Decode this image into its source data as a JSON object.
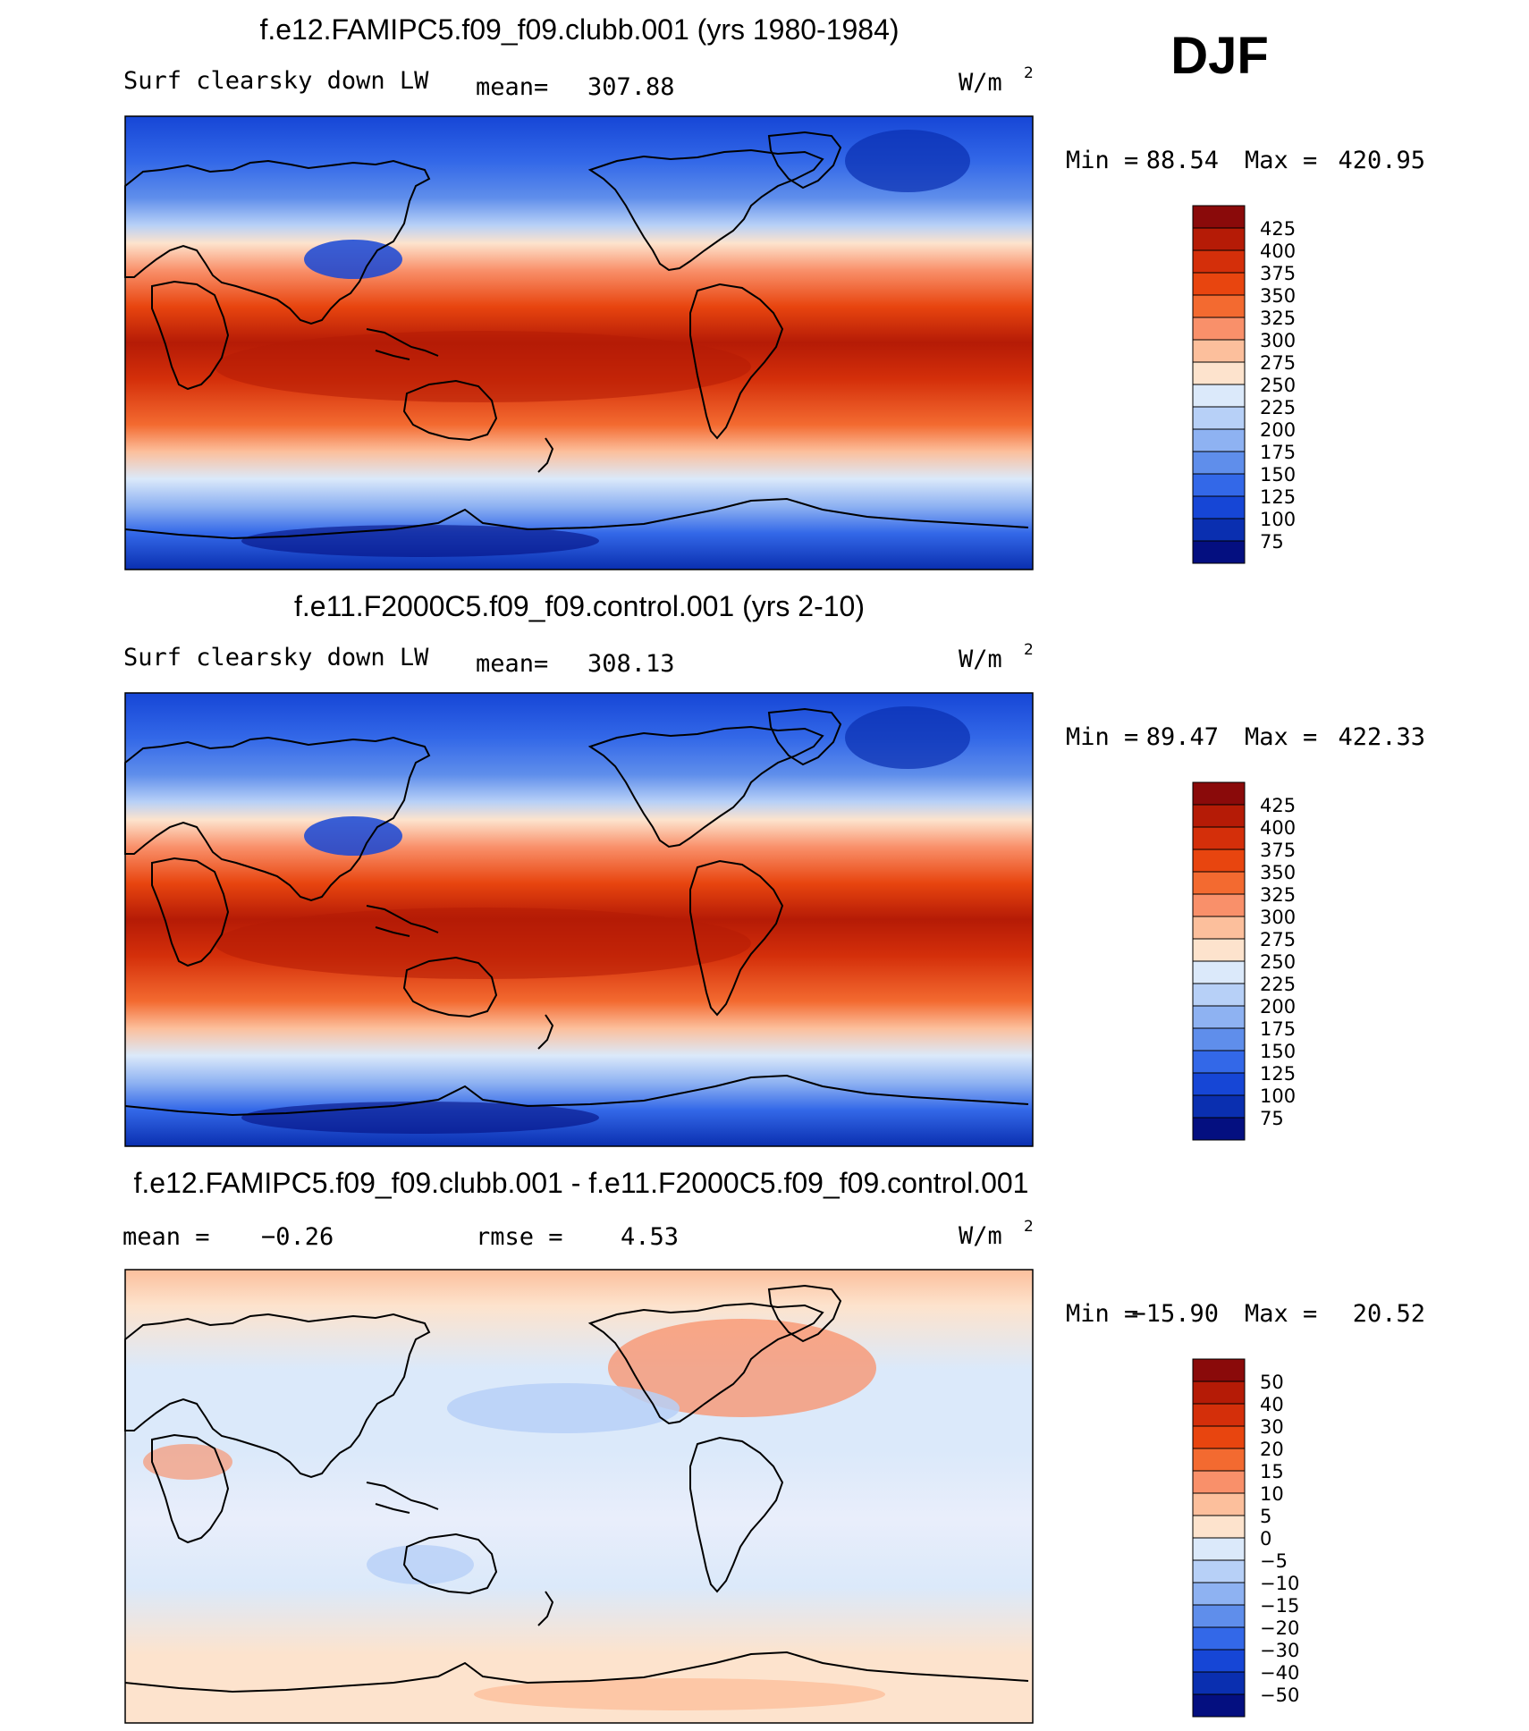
{
  "season": "DJF",
  "chart_data": [
    {
      "type": "heatmap",
      "title": "f.e12.FAMIPC5.f09_f09.clubb.001 (yrs 1980-1984)",
      "variable": "Surf clearsky down LW",
      "mean_label": "mean=",
      "mean_value": "307.88",
      "units": "W/m",
      "units_sup": "2",
      "min_label": "Min =",
      "min_value": "88.54",
      "max_label": "Max =",
      "max_value": "420.95",
      "colorbar_levels": [
        "425",
        "400",
        "375",
        "350",
        "325",
        "300",
        "275",
        "250",
        "225",
        "200",
        "175",
        "150",
        "125",
        "100",
        "75"
      ],
      "colorbar_colors": [
        "#8a0a0a",
        "#b51b06",
        "#d42f0a",
        "#e8450f",
        "#f36a30",
        "#f9906a",
        "#fcbf9c",
        "#fde3cd",
        "#dbe9fa",
        "#b7d0f7",
        "#8eb2f2",
        "#5f8eeb",
        "#3368e8",
        "#1646d6",
        "#0a2fb0",
        "#040f80"
      ]
    },
    {
      "type": "heatmap",
      "title": "f.e11.F2000C5.f09_f09.control.001 (yrs 2-10)",
      "variable": "Surf clearsky down LW",
      "mean_label": "mean=",
      "mean_value": "308.13",
      "units": "W/m",
      "units_sup": "2",
      "min_label": "Min =",
      "min_value": "89.47",
      "max_label": "Max =",
      "max_value": "422.33",
      "colorbar_levels": [
        "425",
        "400",
        "375",
        "350",
        "325",
        "300",
        "275",
        "250",
        "225",
        "200",
        "175",
        "150",
        "125",
        "100",
        "75"
      ],
      "colorbar_colors": [
        "#8a0a0a",
        "#b51b06",
        "#d42f0a",
        "#e8450f",
        "#f36a30",
        "#f9906a",
        "#fcbf9c",
        "#fde3cd",
        "#dbe9fa",
        "#b7d0f7",
        "#8eb2f2",
        "#5f8eeb",
        "#3368e8",
        "#1646d6",
        "#0a2fb0",
        "#040f80"
      ]
    },
    {
      "type": "heatmap",
      "title": "f.e12.FAMIPC5.f09_f09.clubb.001 - f.e11.F2000C5.f09_f09.control.001",
      "mean_label": "mean =",
      "mean_value": "−0.26",
      "rmse_label": "rmse =",
      "rmse_value": "4.53",
      "units": "W/m",
      "units_sup": "2",
      "min_label": "Min =",
      "min_value": "−15.90",
      "max_label": "Max =",
      "max_value": "20.52",
      "colorbar_levels": [
        "50",
        "40",
        "30",
        "20",
        "15",
        "10",
        "5",
        "0",
        "−5",
        "−10",
        "−15",
        "−20",
        "−30",
        "−40",
        "−50"
      ],
      "colorbar_colors": [
        "#8a0a0a",
        "#b51b06",
        "#d42f0a",
        "#e8450f",
        "#f36a30",
        "#f9906a",
        "#fcbf9c",
        "#fde3cd",
        "#dbe9fa",
        "#b7d0f7",
        "#8eb2f2",
        "#5f8eeb",
        "#3368e8",
        "#1646d6",
        "#0a2fb0",
        "#040f80"
      ]
    }
  ]
}
